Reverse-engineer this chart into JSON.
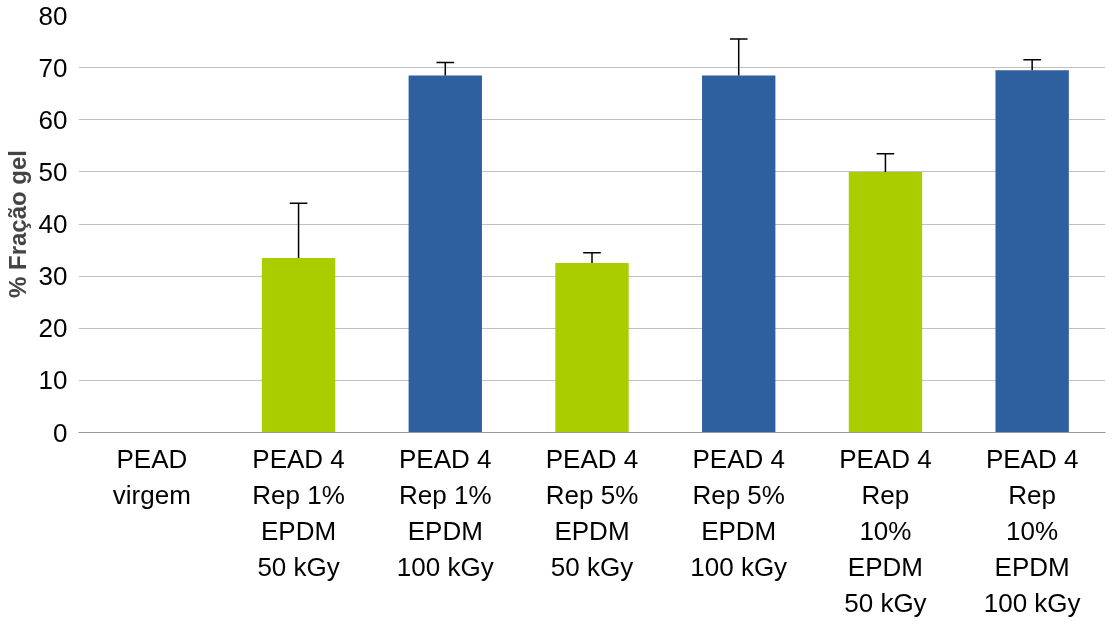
{
  "chart_data": {
    "type": "bar",
    "ylabel": "% Fração gel",
    "categories": [
      "PEAD\nvirgem",
      "PEAD 4\nRep 1%\nEPDM\n50 kGy",
      "PEAD 4\nRep 1%\nEPDM\n100 kGy",
      "PEAD 4\nRep 5%\nEPDM\n50 kGy",
      "PEAD 4\nRep 5%\nEPDM\n100 kGy",
      "PEAD 4\nRep\n10%\nEPDM\n50 kGy",
      "PEAD 4\nRep\n10%\nEPDM\n100 kGy"
    ],
    "values": [
      0,
      33.5,
      68.5,
      32.5,
      68.5,
      50,
      69.5
    ],
    "colors": [
      "#2e5f9e",
      "#aacd00",
      "#2e5f9e",
      "#aacd00",
      "#2e5f9e",
      "#aacd00",
      "#2e5f9e"
    ],
    "errors": [
      null,
      [
        33.5,
        44
      ],
      [
        68.5,
        71
      ],
      [
        32.5,
        34.5
      ],
      [
        68.5,
        75.5
      ],
      [
        50,
        53.5
      ],
      [
        69.5,
        71.5
      ]
    ],
    "ylim": [
      0,
      80
    ],
    "yticks": [
      0,
      10,
      20,
      30,
      40,
      50,
      60,
      70,
      80
    ],
    "grid": "y"
  }
}
